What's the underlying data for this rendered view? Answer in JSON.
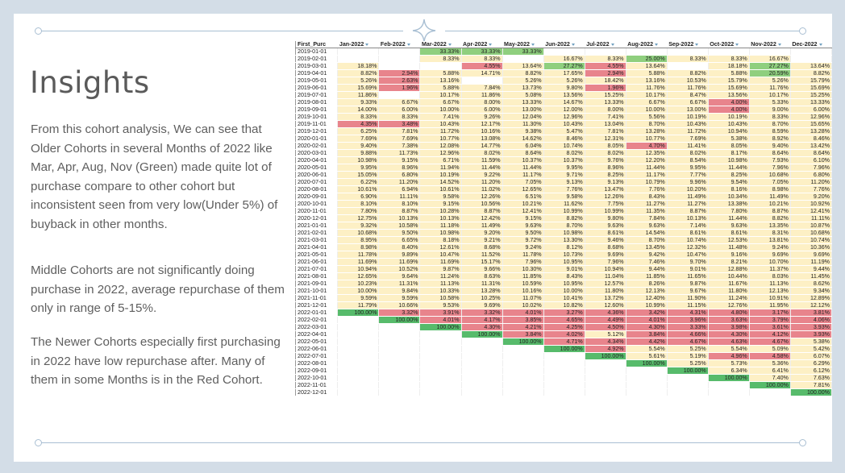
{
  "title": "Insights",
  "paragraph1": "From this cohort analysis, We can see that Older Cohorts in several Months of 2022 like Mar, Apr, Aug, Nov (Green) made quite lot of purchase compare to other cohort but inconsistent seen from very low(Under 5%) of buyback in other months.",
  "paragraph2": "Middle Cohorts are not significantly doing purchase in 2022, average repurchase of them only in range of 5-15%.",
  "paragraph3": "The Newer Cohorts especially first purchasing in 2022 have low repurchase after. Many of them in some Months is in the Red Cohort.",
  "table": {
    "first_col_header": "First_Purc",
    "months": [
      "Jan-2022",
      "Feb-2022",
      "Mar-2022",
      "Apr-2022",
      "May-2022",
      "Jun-2022",
      "Jul-2022",
      "Aug-2022",
      "Sep-2022",
      "Oct-2022",
      "Nov-2022",
      "Dec-2022"
    ],
    "rows": [
      [
        "2019-01-01",
        "",
        "",
        "33.33%",
        "33.33%",
        "33.33%",
        "",
        "",
        "",
        "",
        "",
        "",
        ""
      ],
      [
        "2019-02-01",
        "",
        "",
        "8.33%",
        "8.33%",
        "",
        "16.67%",
        "8.33%",
        "25.00%",
        "8.33%",
        "8.33%",
        "16.67%",
        ""
      ],
      [
        "2019-03-01",
        "18.18%",
        "",
        "",
        "4.55%",
        "13.64%",
        "27.27%",
        "4.55%",
        "13.64%",
        "",
        "18.18%",
        "27.27%",
        "13.64%"
      ],
      [
        "2019-04-01",
        "8.82%",
        "2.94%",
        "5.88%",
        "14.71%",
        "8.82%",
        "17.65%",
        "2.94%",
        "5.88%",
        "8.82%",
        "5.88%",
        "20.59%",
        "8.82%"
      ],
      [
        "2019-05-01",
        "5.26%",
        "2.63%",
        "13.16%",
        "",
        "5.26%",
        "5.26%",
        "18.42%",
        "13.16%",
        "10.53%",
        "15.79%",
        "5.26%",
        "15.79%"
      ],
      [
        "2019-06-01",
        "15.69%",
        "1.96%",
        "5.88%",
        "7.84%",
        "13.73%",
        "9.80%",
        "1.96%",
        "11.76%",
        "11.76%",
        "15.69%",
        "11.76%",
        "15.69%"
      ],
      [
        "2019-07-01",
        "11.86%",
        "",
        "10.17%",
        "11.86%",
        "5.08%",
        "13.56%",
        "15.25%",
        "10.17%",
        "8.47%",
        "13.56%",
        "10.17%",
        "15.25%"
      ],
      [
        "2019-08-01",
        "9.33%",
        "6.67%",
        "6.67%",
        "8.00%",
        "13.33%",
        "14.67%",
        "13.33%",
        "6.67%",
        "6.67%",
        "4.00%",
        "5.33%",
        "13.33%"
      ],
      [
        "2019-09-01",
        "14.00%",
        "6.00%",
        "10.00%",
        "6.00%",
        "13.00%",
        "12.00%",
        "8.00%",
        "10.00%",
        "13.00%",
        "4.00%",
        "9.00%",
        "6.00%"
      ],
      [
        "2019-10-01",
        "8.33%",
        "8.33%",
        "7.41%",
        "9.26%",
        "12.04%",
        "12.96%",
        "7.41%",
        "5.56%",
        "10.19%",
        "10.19%",
        "8.33%",
        "12.96%"
      ],
      [
        "2019-11-01",
        "4.35%",
        "3.48%",
        "10.43%",
        "12.17%",
        "11.30%",
        "10.43%",
        "13.04%",
        "8.70%",
        "10.43%",
        "10.43%",
        "8.70%",
        "15.65%"
      ],
      [
        "2019-12-01",
        "6.25%",
        "7.81%",
        "11.72%",
        "10.16%",
        "9.38%",
        "5.47%",
        "7.81%",
        "13.28%",
        "11.72%",
        "10.94%",
        "8.59%",
        "13.28%"
      ],
      [
        "2020-01-01",
        "7.69%",
        "7.69%",
        "10.77%",
        "13.08%",
        "14.62%",
        "8.46%",
        "12.31%",
        "10.77%",
        "7.69%",
        "5.38%",
        "8.92%",
        "8.46%"
      ],
      [
        "2020-02-01",
        "9.40%",
        "7.38%",
        "12.08%",
        "14.77%",
        "6.04%",
        "10.74%",
        "8.05%",
        "4.70%",
        "11.41%",
        "8.05%",
        "9.40%",
        "13.42%"
      ],
      [
        "2020-03-01",
        "9.88%",
        "11.73%",
        "12.96%",
        "8.02%",
        "8.64%",
        "8.02%",
        "8.02%",
        "12.35%",
        "8.02%",
        "8.17%",
        "8.64%",
        "8.64%"
      ],
      [
        "2020-04-01",
        "10.98%",
        "9.15%",
        "6.71%",
        "11.59%",
        "10.37%",
        "10.37%",
        "9.76%",
        "12.20%",
        "8.54%",
        "10.98%",
        "7.93%",
        "6.10%"
      ],
      [
        "2020-05-01",
        "9.95%",
        "8.96%",
        "11.94%",
        "11.44%",
        "11.44%",
        "9.95%",
        "8.96%",
        "11.44%",
        "9.95%",
        "11.44%",
        "7.96%",
        "7.96%"
      ],
      [
        "2020-06-01",
        "15.05%",
        "6.80%",
        "10.19%",
        "9.22%",
        "11.17%",
        "9.71%",
        "8.25%",
        "11.17%",
        "7.77%",
        "8.25%",
        "10.68%",
        "6.80%"
      ],
      [
        "2020-07-01",
        "6.22%",
        "11.20%",
        "14.52%",
        "11.20%",
        "7.05%",
        "9.13%",
        "9.13%",
        "10.79%",
        "9.96%",
        "9.54%",
        "7.05%",
        "11.20%"
      ],
      [
        "2020-08-01",
        "10.61%",
        "6.94%",
        "10.61%",
        "11.02%",
        "12.65%",
        "7.76%",
        "13.47%",
        "7.76%",
        "10.20%",
        "8.16%",
        "8.98%",
        "7.76%"
      ],
      [
        "2020-09-01",
        "6.90%",
        "11.11%",
        "9.58%",
        "12.26%",
        "6.51%",
        "9.58%",
        "12.26%",
        "8.43%",
        "11.49%",
        "10.34%",
        "11.49%",
        "9.20%"
      ],
      [
        "2020-10-01",
        "8.10%",
        "8.10%",
        "9.15%",
        "10.56%",
        "10.21%",
        "11.62%",
        "7.75%",
        "11.27%",
        "11.27%",
        "13.38%",
        "10.21%",
        "10.92%"
      ],
      [
        "2020-11-01",
        "7.80%",
        "8.87%",
        "10.28%",
        "8.87%",
        "12.41%",
        "10.99%",
        "10.99%",
        "11.35%",
        "8.87%",
        "7.80%",
        "8.87%",
        "12.41%"
      ],
      [
        "2020-12-01",
        "12.75%",
        "10.13%",
        "10.13%",
        "12.42%",
        "9.15%",
        "8.82%",
        "9.80%",
        "7.84%",
        "10.13%",
        "11.44%",
        "8.82%",
        "11.11%"
      ],
      [
        "2021-01-01",
        "9.32%",
        "10.58%",
        "11.18%",
        "11.49%",
        "9.63%",
        "8.70%",
        "9.63%",
        "9.63%",
        "7.14%",
        "9.63%",
        "13.35%",
        "10.87%"
      ],
      [
        "2021-02-01",
        "10.68%",
        "9.50%",
        "10.98%",
        "9.20%",
        "9.50%",
        "10.98%",
        "8.61%",
        "14.54%",
        "8.61%",
        "8.61%",
        "8.31%",
        "10.68%"
      ],
      [
        "2021-03-01",
        "8.95%",
        "6.65%",
        "8.18%",
        "9.21%",
        "9.72%",
        "13.30%",
        "9.46%",
        "8.70%",
        "10.74%",
        "12.53%",
        "13.81%",
        "10.74%"
      ],
      [
        "2021-04-01",
        "8.98%",
        "8.40%",
        "12.61%",
        "8.68%",
        "9.24%",
        "8.12%",
        "8.68%",
        "13.45%",
        "12.32%",
        "11.48%",
        "9.24%",
        "10.36%"
      ],
      [
        "2021-05-01",
        "11.78%",
        "9.89%",
        "10.47%",
        "11.52%",
        "11.78%",
        "10.73%",
        "9.69%",
        "9.42%",
        "10.47%",
        "9.16%",
        "9.69%",
        "9.69%"
      ],
      [
        "2021-06-01",
        "11.69%",
        "11.69%",
        "11.69%",
        "15.17%",
        "7.96%",
        "10.95%",
        "7.96%",
        "7.46%",
        "9.70%",
        "8.21%",
        "10.70%",
        "11.19%"
      ],
      [
        "2021-07-01",
        "10.94%",
        "10.52%",
        "9.87%",
        "9.66%",
        "10.30%",
        "9.01%",
        "10.94%",
        "9.44%",
        "9.01%",
        "12.88%",
        "11.37%",
        "9.44%"
      ],
      [
        "2021-08-01",
        "12.65%",
        "9.64%",
        "11.24%",
        "8.63%",
        "11.85%",
        "8.43%",
        "11.04%",
        "11.85%",
        "11.65%",
        "10.44%",
        "8.03%",
        "11.45%"
      ],
      [
        "2021-09-01",
        "10.23%",
        "11.31%",
        "11.13%",
        "11.31%",
        "10.59%",
        "10.95%",
        "12.57%",
        "8.26%",
        "9.87%",
        "11.67%",
        "11.13%",
        "8.62%"
      ],
      [
        "2021-10-01",
        "10.00%",
        "9.84%",
        "10.33%",
        "13.28%",
        "10.16%",
        "10.00%",
        "11.80%",
        "12.13%",
        "9.67%",
        "11.80%",
        "12.13%",
        "9.34%"
      ],
      [
        "2021-11-01",
        "9.59%",
        "9.59%",
        "10.58%",
        "10.25%",
        "11.07%",
        "10.41%",
        "13.72%",
        "12.40%",
        "11.90%",
        "11.24%",
        "10.91%",
        "12.89%"
      ],
      [
        "2021-12-01",
        "11.79%",
        "10.66%",
        "9.53%",
        "9.69%",
        "10.02%",
        "10.82%",
        "12.60%",
        "10.99%",
        "11.15%",
        "12.76%",
        "11.95%",
        "12.12%"
      ],
      [
        "2022-01-01",
        "100.00%",
        "3.32%",
        "3.91%",
        "3.32%",
        "4.01%",
        "3.27%",
        "4.36%",
        "3.42%",
        "4.31%",
        "4.80%",
        "3.17%",
        "3.81%"
      ],
      [
        "2022-02-01",
        "",
        "100.00%",
        "4.01%",
        "4.17%",
        "3.85%",
        "4.65%",
        "4.49%",
        "4.01%",
        "3.96%",
        "3.63%",
        "3.79%",
        "4.06%"
      ],
      [
        "2022-03-01",
        "",
        "",
        "100.00%",
        "4.30%",
        "4.21%",
        "4.25%",
        "4.50%",
        "4.30%",
        "3.33%",
        "3.98%",
        "3.61%",
        "3.93%"
      ],
      [
        "2022-04-01",
        "",
        "",
        "",
        "100.00%",
        "3.84%",
        "4.02%",
        "5.12%",
        "3.84%",
        "4.66%",
        "4.30%",
        "4.12%",
        "3.93%"
      ],
      [
        "2022-05-01",
        "",
        "",
        "",
        "",
        "100.00%",
        "4.71%",
        "4.34%",
        "4.42%",
        "4.67%",
        "4.63%",
        "4.67%",
        "5.38%"
      ],
      [
        "2022-06-01",
        "",
        "",
        "",
        "",
        "",
        "100.00%",
        "4.92%",
        "5.54%",
        "5.25%",
        "5.54%",
        "5.09%",
        "5.42%"
      ],
      [
        "2022-07-01",
        "",
        "",
        "",
        "",
        "",
        "",
        "100.00%",
        "5.61%",
        "5.19%",
        "4.96%",
        "4.58%",
        "6.07%"
      ],
      [
        "2022-08-01",
        "",
        "",
        "",
        "",
        "",
        "",
        "",
        "100.00%",
        "5.25%",
        "5.73%",
        "5.36%",
        "6.29%"
      ],
      [
        "2022-09-01",
        "",
        "",
        "",
        "",
        "",
        "",
        "",
        "",
        "100.00%",
        "6.34%",
        "6.41%",
        "6.12%"
      ],
      [
        "2022-10-01",
        "",
        "",
        "",
        "",
        "",
        "",
        "",
        "",
        "",
        "100.00%",
        "7.40%",
        "7.63%"
      ],
      [
        "2022-11-01",
        "",
        "",
        "",
        "",
        "",
        "",
        "",
        "",
        "",
        "",
        "100.00%",
        "7.81%"
      ],
      [
        "2022-12-01",
        "",
        "",
        "",
        "",
        "",
        "",
        "",
        "",
        "",
        "",
        "",
        "100.00%"
      ]
    ],
    "colors": {
      "green": "#57bb6b",
      "red": "#e8848c",
      "yellow": "#fdf0c5",
      "high_green": "#8fcf7e"
    }
  }
}
